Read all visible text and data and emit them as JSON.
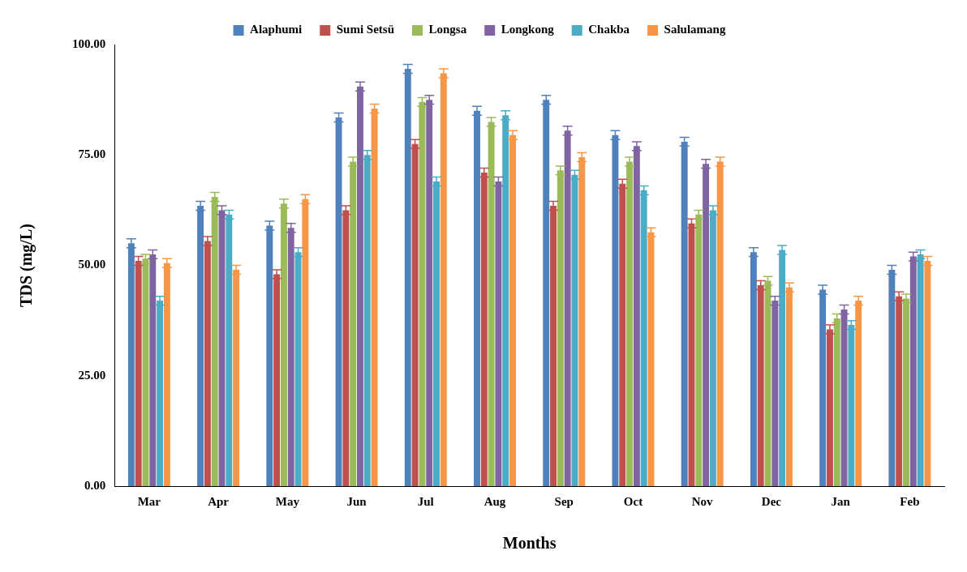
{
  "chart_data": {
    "type": "bar",
    "xlabel": "Months",
    "ylabel": "TDS (mg/L)",
    "categories": [
      "Mar",
      "Apr",
      "May",
      "Jun",
      "Jul",
      "Aug",
      "Sep",
      "Oct",
      "Nov",
      "Dec",
      "Jan",
      "Feb"
    ],
    "series": [
      {
        "name": "Alaphumi",
        "color": "#4f81bd",
        "values": [
          55,
          63.5,
          59,
          83.5,
          94.5,
          85,
          87.5,
          79.5,
          78,
          53,
          44.5,
          49
        ],
        "errors": [
          1,
          1,
          1,
          1,
          1,
          1,
          1,
          1,
          1,
          1,
          1,
          1
        ]
      },
      {
        "name": "Sumi Setsü",
        "color": "#c0504d",
        "values": [
          51,
          55.5,
          48,
          62.5,
          77.5,
          71,
          63.5,
          68.5,
          59.5,
          45.5,
          35.5,
          43
        ],
        "errors": [
          1,
          1,
          1,
          1,
          1,
          1,
          1,
          1,
          1,
          1,
          1,
          1
        ]
      },
      {
        "name": "Longsa",
        "color": "#9bbb59",
        "values": [
          51.5,
          65.5,
          64,
          73.5,
          87,
          82.5,
          71.5,
          73.5,
          61.5,
          46.5,
          38,
          42.5
        ],
        "errors": [
          1,
          1,
          1,
          1,
          1,
          1,
          1,
          1,
          1,
          1,
          1,
          1
        ]
      },
      {
        "name": "Longkong",
        "color": "#8064a2",
        "values": [
          52.5,
          62.5,
          58.5,
          90.5,
          87.5,
          69,
          80.5,
          77,
          73,
          42,
          40,
          52
        ],
        "errors": [
          1,
          1,
          1,
          1,
          1,
          1,
          1,
          1,
          1,
          1,
          1,
          1
        ]
      },
      {
        "name": "Chakba",
        "color": "#4bacc6",
        "values": [
          42,
          61.5,
          53,
          75,
          69,
          84,
          70.5,
          67,
          62.5,
          53.5,
          36.5,
          52.5
        ],
        "errors": [
          1,
          1,
          1,
          1,
          1,
          1,
          1,
          1,
          1,
          1,
          1,
          1
        ]
      },
      {
        "name": "Salulamang",
        "color": "#f79646",
        "values": [
          50.5,
          49,
          65,
          85.5,
          93.5,
          79.5,
          74.5,
          57.5,
          73.5,
          45,
          42,
          51
        ],
        "errors": [
          1,
          1,
          1,
          1,
          1,
          1,
          1,
          1,
          1,
          1,
          1,
          1
        ]
      }
    ],
    "ylim": [
      0,
      100
    ],
    "yticks": [
      {
        "value": 0,
        "label": "0.00"
      },
      {
        "value": 25,
        "label": "25.00"
      },
      {
        "value": 50,
        "label": "50.00"
      },
      {
        "value": 75,
        "label": "75.00"
      },
      {
        "value": 100,
        "label": "100.00"
      }
    ],
    "grid": false,
    "legend": "top"
  }
}
